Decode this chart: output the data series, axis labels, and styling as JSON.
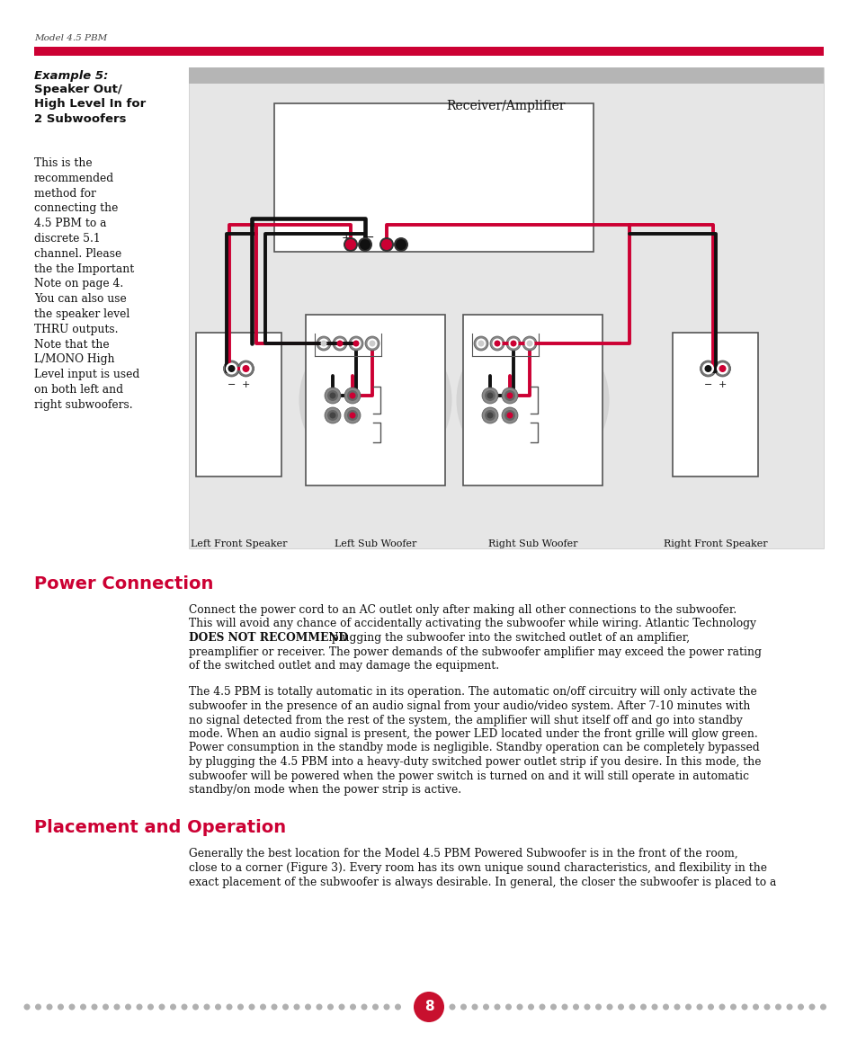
{
  "bg_color": "#ffffff",
  "red_color": "#cc0033",
  "dark_red": "#c8102e",
  "header_text": "Model 4.5 PBM",
  "example_italic": "Example 5:",
  "example_bold": "Speaker Out/\nHigh Level In for\n2 Subwoofers",
  "example_body": "This is the\nrecommended\nmethod for\nconnecting the\n4.5 PBM to a\ndiscrete 5.1\nchannel. Please\nthe the Important\nNote on page 4.\nYou can also use\nthe speaker level\nTHRU outputs.\nNote that the\nL/MONO High\nLevel input is used\non both left and\nright subwoofers.",
  "receiver_label": "Receiver/Amplifier",
  "diagram_labels": [
    "Left Front Speaker",
    "Left Sub Woofer",
    "Right Sub Woofer",
    "Right Front Speaker"
  ],
  "power_heading": "Power Connection",
  "placement_heading": "Placement and Operation",
  "page_number": "8",
  "red_wire": "#cc0033",
  "black_wire": "#111111",
  "gray_diag_bg": "#e2e2e2",
  "gray_stripe": "#b0b0b0",
  "white": "#ffffff",
  "dark": "#222222",
  "dot_color": "#b0b0b0"
}
